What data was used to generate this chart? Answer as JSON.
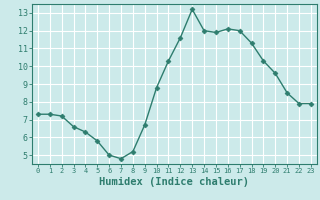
{
  "x": [
    0,
    1,
    2,
    3,
    4,
    5,
    6,
    7,
    8,
    9,
    10,
    11,
    12,
    13,
    14,
    15,
    16,
    17,
    18,
    19,
    20,
    21,
    22,
    23
  ],
  "y": [
    7.3,
    7.3,
    7.2,
    6.6,
    6.3,
    5.8,
    5.0,
    4.8,
    5.2,
    6.7,
    8.8,
    10.3,
    11.6,
    13.2,
    12.0,
    11.9,
    12.1,
    12.0,
    11.3,
    10.3,
    9.6,
    8.5,
    7.9,
    7.9
  ],
  "xlabel": "Humidex (Indice chaleur)",
  "ylabel": "",
  "xlim": [
    -0.5,
    23.5
  ],
  "ylim": [
    4.5,
    13.5
  ],
  "yticks": [
    5,
    6,
    7,
    8,
    9,
    10,
    11,
    12,
    13
  ],
  "xticks": [
    0,
    1,
    2,
    3,
    4,
    5,
    6,
    7,
    8,
    9,
    10,
    11,
    12,
    13,
    14,
    15,
    16,
    17,
    18,
    19,
    20,
    21,
    22,
    23
  ],
  "line_color": "#2e7d6e",
  "marker": "D",
  "marker_size": 2.5,
  "bg_color": "#cceaea",
  "grid_color": "#ffffff",
  "tick_color": "#2e7d6e",
  "label_color": "#2e7d6e",
  "xlabel_fontsize": 7.5,
  "tick_fontsize_x": 5.0,
  "tick_fontsize_y": 6.0,
  "linewidth": 1.0
}
